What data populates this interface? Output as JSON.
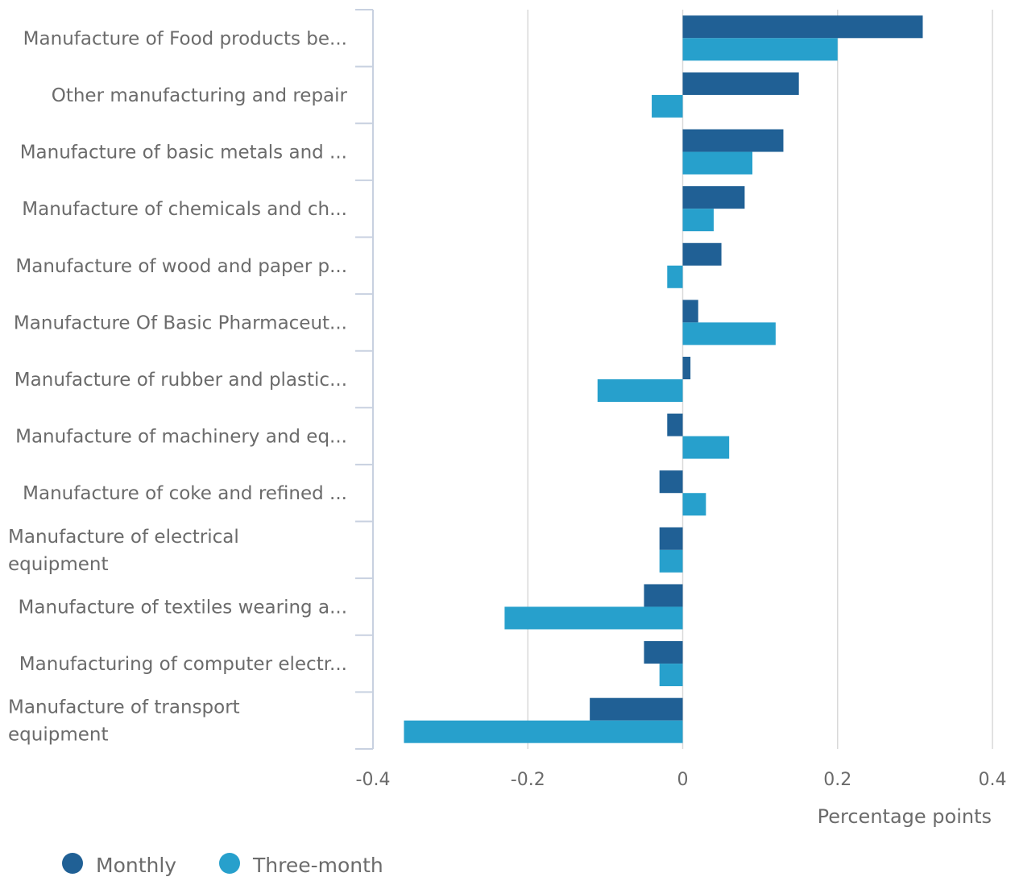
{
  "chart_data": {
    "type": "bar",
    "orientation": "horizontal",
    "categories": [
      "Manufacture of Food products be...",
      "Other manufacturing and repair",
      "Manufacture of basic metals and ...",
      "Manufacture of chemicals and ch...",
      "Manufacture of wood and paper p...",
      "Manufacture Of Basic Pharmaceut...",
      "Manufacture of rubber and plastic...",
      "Manufacture of machinery and eq...",
      "Manufacture of coke and refined ...",
      "Manufacture of electrical equipment",
      "Manufacture of textiles wearing a...",
      "Manufacturing of computer electr...",
      "Manufacture of transport equipment"
    ],
    "series": [
      {
        "name": "Monthly",
        "color": "#206095",
        "values": [
          0.31,
          0.15,
          0.13,
          0.08,
          0.05,
          0.02,
          0.01,
          -0.02,
          -0.03,
          -0.03,
          -0.05,
          -0.05,
          -0.12
        ]
      },
      {
        "name": "Three-month",
        "color": "#27a0cc",
        "values": [
          0.2,
          -0.04,
          0.09,
          0.04,
          -0.02,
          0.12,
          -0.11,
          0.06,
          0.03,
          -0.03,
          -0.23,
          -0.03,
          -0.36
        ]
      }
    ],
    "xlabel": "Percentage points",
    "xlim": [
      -0.4,
      0.4
    ],
    "xticks": [
      "-0.4",
      "-0.2",
      "0",
      "0.2",
      "0.4"
    ],
    "xtick_values": [
      -0.4,
      -0.2,
      0,
      0.2,
      0.4
    ],
    "grid": "vertical",
    "legend_position": "bottom-left"
  }
}
